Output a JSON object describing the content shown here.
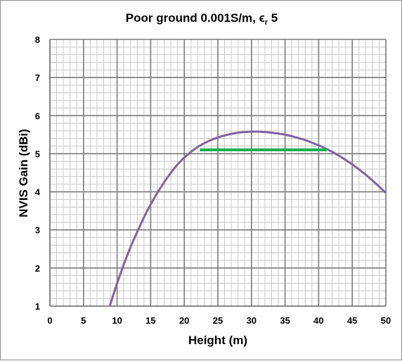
{
  "chart_data": {
    "type": "line",
    "title": "Poor ground 0.001S/m, ",
    "title_symbol": "ϵ",
    "title_subscript": "r",
    "title_suffix": " 5",
    "xlabel": "Height (m)",
    "ylabel": "NVIS Gain (dBi)",
    "xlim": [
      0,
      50
    ],
    "ylim": [
      1,
      8
    ],
    "x_ticks": [
      "0",
      "5",
      "10",
      "15",
      "20",
      "25",
      "30",
      "35",
      "40",
      "45",
      "50"
    ],
    "y_ticks": [
      "1",
      "2",
      "3",
      "4",
      "5",
      "6",
      "7",
      "8"
    ],
    "grid": true,
    "legend": "none",
    "series": [
      {
        "color": "#8064a2",
        "x": [
          8.9,
          10,
          11,
          12,
          13,
          14,
          15,
          16,
          17,
          18,
          19,
          20,
          21,
          22,
          23,
          24,
          25,
          26,
          27,
          28,
          29,
          30,
          31,
          32,
          33,
          34,
          35,
          36,
          37,
          38,
          39,
          40,
          41,
          42,
          43,
          44,
          45,
          46,
          47,
          48,
          49,
          50
        ],
        "y": [
          1.0,
          1.6,
          2.1,
          2.55,
          2.95,
          3.33,
          3.67,
          3.98,
          4.25,
          4.5,
          4.72,
          4.9,
          5.05,
          5.18,
          5.28,
          5.36,
          5.43,
          5.48,
          5.52,
          5.55,
          5.57,
          5.58,
          5.58,
          5.57,
          5.55,
          5.53,
          5.5,
          5.46,
          5.41,
          5.36,
          5.29,
          5.22,
          5.14,
          5.05,
          4.95,
          4.84,
          4.72,
          4.59,
          4.45,
          4.3,
          4.14,
          3.97
        ]
      },
      {
        "color": "#00b050",
        "x": [
          22.3,
          41.2
        ],
        "y": [
          5.1,
          5.1
        ]
      }
    ]
  }
}
